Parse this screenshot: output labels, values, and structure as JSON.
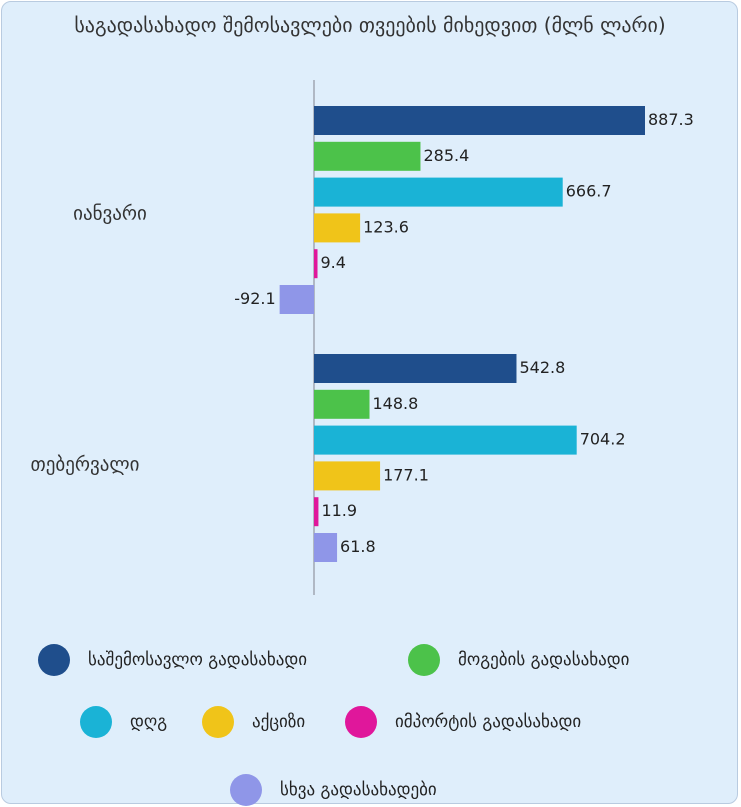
{
  "chart_data": {
    "type": "bar",
    "orientation": "horizontal",
    "title": "საგადასახადო შემოსავლები თვეების მიხედვით (მლნ ლარი)",
    "categories": [
      "იანვარი",
      "თებერვალი"
    ],
    "series": [
      {
        "name": "საშემოსავლო გადასახადი",
        "color": "#1f4e8c",
        "values": [
          887.3,
          542.8
        ]
      },
      {
        "name": "მოგების გადასახადი",
        "color": "#4cc24a",
        "values": [
          285.4,
          148.8
        ]
      },
      {
        "name": "დღგ",
        "color": "#1ab3d6",
        "values": [
          666.7,
          704.2
        ]
      },
      {
        "name": "აქციზი",
        "color": "#f0c419",
        "values": [
          123.6,
          177.1
        ]
      },
      {
        "name": "იმპორტის გადასახადი",
        "color": "#e0179b",
        "values": [
          9.4,
          11.9
        ]
      },
      {
        "name": "სხვა გადასახადები",
        "color": "#8f96e8",
        "values": [
          -92.1,
          61.8
        ]
      }
    ],
    "legend": "bottom"
  }
}
